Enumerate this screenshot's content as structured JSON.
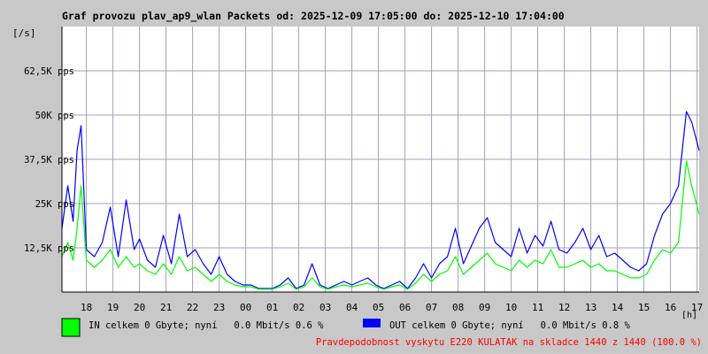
{
  "chart_data": {
    "type": "area",
    "title": "Graf provozu plav_ap9_wlan Packets od: 2025-12-09 17:05:00 do: 2025-12-10 17:04:00",
    "ylabel": "[/s]",
    "xlabel": "[h]",
    "ylim": [
      0,
      75000
    ],
    "y_ticks": [
      {
        "value": 12500,
        "label": "12,5K pps"
      },
      {
        "value": 25000,
        "label": "25K pps"
      },
      {
        "value": 37500,
        "label": "37,5K pps"
      },
      {
        "value": 50000,
        "label": "50K pps"
      },
      {
        "value": 62500,
        "label": "62,5K pps"
      }
    ],
    "xlim": [
      17.08,
      41.08
    ],
    "x_ticks": [
      {
        "value": 18,
        "label": "18"
      },
      {
        "value": 19,
        "label": "19"
      },
      {
        "value": 20,
        "label": "20"
      },
      {
        "value": 21,
        "label": "21"
      },
      {
        "value": 22,
        "label": "22"
      },
      {
        "value": 23,
        "label": "23"
      },
      {
        "value": 24,
        "label": "00"
      },
      {
        "value": 25,
        "label": "01"
      },
      {
        "value": 26,
        "label": "02"
      },
      {
        "value": 27,
        "label": "03"
      },
      {
        "value": 28,
        "label": "04"
      },
      {
        "value": 29,
        "label": "05"
      },
      {
        "value": 30,
        "label": "06"
      },
      {
        "value": 31,
        "label": "07"
      },
      {
        "value": 32,
        "label": "08"
      },
      {
        "value": 33,
        "label": "09"
      },
      {
        "value": 34,
        "label": "10"
      },
      {
        "value": 35,
        "label": "11"
      },
      {
        "value": 36,
        "label": "12"
      },
      {
        "value": 37,
        "label": "13"
      },
      {
        "value": 38,
        "label": "14"
      },
      {
        "value": 39,
        "label": "15"
      },
      {
        "value": 40,
        "label": "16"
      },
      {
        "value": 41,
        "label": "17"
      }
    ],
    "grid": true,
    "series": [
      {
        "name": "OUT celkem 0 Gbyte; nyní   0.0 Mbit/s 0.8 %",
        "color": "#0000ff",
        "x": [
          17.08,
          17.3,
          17.5,
          17.65,
          17.8,
          18.0,
          18.3,
          18.6,
          18.9,
          19.2,
          19.5,
          19.8,
          20.0,
          20.3,
          20.6,
          20.9,
          21.2,
          21.5,
          21.8,
          22.1,
          22.4,
          22.7,
          23.0,
          23.3,
          23.6,
          23.9,
          24.2,
          24.5,
          24.8,
          25.0,
          25.3,
          25.6,
          25.9,
          26.2,
          26.5,
          26.8,
          27.1,
          27.4,
          27.7,
          28.0,
          28.3,
          28.6,
          28.9,
          29.2,
          29.5,
          29.8,
          30.1,
          30.4,
          30.7,
          31.0,
          31.3,
          31.6,
          31.9,
          32.2,
          32.5,
          32.8,
          33.1,
          33.4,
          33.7,
          34.0,
          34.3,
          34.6,
          34.9,
          35.2,
          35.5,
          35.8,
          36.1,
          36.4,
          36.7,
          37.0,
          37.3,
          37.6,
          37.9,
          38.2,
          38.5,
          38.8,
          39.1,
          39.4,
          39.7,
          40.0,
          40.3,
          40.6,
          40.8,
          41.08
        ],
        "values": [
          18000,
          30000,
          20000,
          40000,
          47000,
          12000,
          10000,
          14000,
          24000,
          10000,
          26000,
          12000,
          15000,
          9000,
          7000,
          16000,
          8000,
          22000,
          10000,
          12000,
          8000,
          5000,
          10000,
          5000,
          3000,
          2000,
          2000,
          1000,
          1000,
          1000,
          2000,
          4000,
          1000,
          2000,
          8000,
          2000,
          1000,
          2000,
          3000,
          2000,
          3000,
          4000,
          2000,
          1000,
          2000,
          3000,
          1000,
          4000,
          8000,
          4000,
          8000,
          10000,
          18000,
          8000,
          13000,
          18000,
          21000,
          14000,
          12000,
          10000,
          18000,
          11000,
          16000,
          13000,
          20000,
          12000,
          11000,
          14000,
          18000,
          12000,
          16000,
          10000,
          11000,
          9000,
          7000,
          6000,
          8000,
          16000,
          22000,
          25000,
          30000,
          51000,
          48000,
          40000
        ]
      },
      {
        "name": "IN celkem 0 Gbyte; nyní   0.0 Mbit/s 0.6 %",
        "color": "#00ff00",
        "x": [
          17.08,
          17.3,
          17.5,
          17.65,
          17.8,
          18.0,
          18.3,
          18.6,
          18.9,
          19.2,
          19.5,
          19.8,
          20.0,
          20.3,
          20.6,
          20.9,
          21.2,
          21.5,
          21.8,
          22.1,
          22.4,
          22.7,
          23.0,
          23.3,
          23.6,
          23.9,
          24.2,
          24.5,
          24.8,
          25.0,
          25.3,
          25.6,
          25.9,
          26.2,
          26.5,
          26.8,
          27.1,
          27.4,
          27.7,
          28.0,
          28.3,
          28.6,
          28.9,
          29.2,
          29.5,
          29.8,
          30.1,
          30.4,
          30.7,
          31.0,
          31.3,
          31.6,
          31.9,
          32.2,
          32.5,
          32.8,
          33.1,
          33.4,
          33.7,
          34.0,
          34.3,
          34.6,
          34.9,
          35.2,
          35.5,
          35.8,
          36.1,
          36.4,
          36.7,
          37.0,
          37.3,
          37.6,
          37.9,
          38.2,
          38.5,
          38.8,
          39.1,
          39.4,
          39.7,
          40.0,
          40.3,
          40.6,
          40.8,
          41.08
        ],
        "values": [
          10000,
          14000,
          9000,
          18000,
          30000,
          9000,
          7000,
          9000,
          12000,
          7000,
          10000,
          7000,
          8000,
          6000,
          5000,
          8000,
          5000,
          10000,
          6000,
          7000,
          5000,
          3000,
          5000,
          3000,
          2000,
          1500,
          1500,
          800,
          800,
          800,
          1500,
          2500,
          800,
          1500,
          4000,
          1500,
          800,
          1500,
          2000,
          1500,
          2000,
          2500,
          1500,
          800,
          1500,
          2000,
          800,
          2500,
          5000,
          3000,
          5000,
          6000,
          10000,
          5000,
          7000,
          9000,
          11000,
          8000,
          7000,
          6000,
          9000,
          7000,
          9000,
          8000,
          12000,
          7000,
          7000,
          8000,
          9000,
          7000,
          8000,
          6000,
          6000,
          5000,
          4000,
          4000,
          5000,
          9000,
          12000,
          11000,
          14000,
          37000,
          30000,
          22000
        ]
      }
    ]
  },
  "legend": {
    "in_label": "IN celkem 0 Gbyte; nyní   0.0 Mbit/s 0.6 %",
    "out_label": "OUT celkem 0 Gbyte; nyní   0.0 Mbit/s 0.8 %",
    "in_color": "#00ff00",
    "out_color": "#0000ff"
  },
  "footer_note": "Pravdepodobnost vyskytu E220 KULATAK na skladce 1440 z 1440 (100.0 %)",
  "footer_color": "#ff0000"
}
